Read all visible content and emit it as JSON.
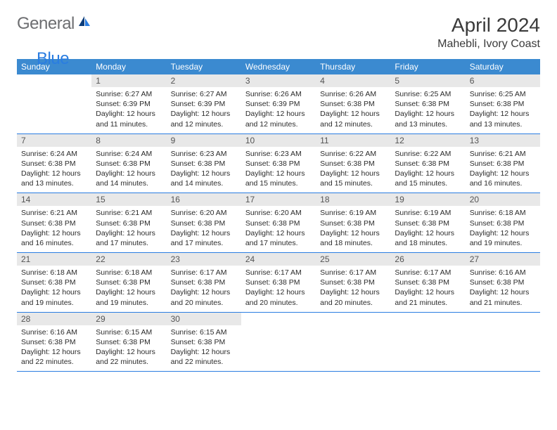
{
  "logo": {
    "general": "General",
    "blue": "Blue"
  },
  "title": "April 2024",
  "location": "Mahebli, Ivory Coast",
  "colors": {
    "header_bg": "#3b8ad0",
    "header_fg": "#ffffff",
    "daynum_bg": "#e8e8e8",
    "daynum_fg": "#555555",
    "border": "#2a7de1",
    "text": "#2b2b2b",
    "logo_gray": "#6d6e71",
    "logo_blue": "#2a7de1"
  },
  "dayNames": [
    "Sunday",
    "Monday",
    "Tuesday",
    "Wednesday",
    "Thursday",
    "Friday",
    "Saturday"
  ],
  "weeks": [
    [
      {
        "n": "",
        "sunrise": "",
        "sunset": "",
        "daylight": ""
      },
      {
        "n": "1",
        "sunrise": "Sunrise: 6:27 AM",
        "sunset": "Sunset: 6:39 PM",
        "daylight": "Daylight: 12 hours and 11 minutes."
      },
      {
        "n": "2",
        "sunrise": "Sunrise: 6:27 AM",
        "sunset": "Sunset: 6:39 PM",
        "daylight": "Daylight: 12 hours and 12 minutes."
      },
      {
        "n": "3",
        "sunrise": "Sunrise: 6:26 AM",
        "sunset": "Sunset: 6:39 PM",
        "daylight": "Daylight: 12 hours and 12 minutes."
      },
      {
        "n": "4",
        "sunrise": "Sunrise: 6:26 AM",
        "sunset": "Sunset: 6:38 PM",
        "daylight": "Daylight: 12 hours and 12 minutes."
      },
      {
        "n": "5",
        "sunrise": "Sunrise: 6:25 AM",
        "sunset": "Sunset: 6:38 PM",
        "daylight": "Daylight: 12 hours and 13 minutes."
      },
      {
        "n": "6",
        "sunrise": "Sunrise: 6:25 AM",
        "sunset": "Sunset: 6:38 PM",
        "daylight": "Daylight: 12 hours and 13 minutes."
      }
    ],
    [
      {
        "n": "7",
        "sunrise": "Sunrise: 6:24 AM",
        "sunset": "Sunset: 6:38 PM",
        "daylight": "Daylight: 12 hours and 13 minutes."
      },
      {
        "n": "8",
        "sunrise": "Sunrise: 6:24 AM",
        "sunset": "Sunset: 6:38 PM",
        "daylight": "Daylight: 12 hours and 14 minutes."
      },
      {
        "n": "9",
        "sunrise": "Sunrise: 6:23 AM",
        "sunset": "Sunset: 6:38 PM",
        "daylight": "Daylight: 12 hours and 14 minutes."
      },
      {
        "n": "10",
        "sunrise": "Sunrise: 6:23 AM",
        "sunset": "Sunset: 6:38 PM",
        "daylight": "Daylight: 12 hours and 15 minutes."
      },
      {
        "n": "11",
        "sunrise": "Sunrise: 6:22 AM",
        "sunset": "Sunset: 6:38 PM",
        "daylight": "Daylight: 12 hours and 15 minutes."
      },
      {
        "n": "12",
        "sunrise": "Sunrise: 6:22 AM",
        "sunset": "Sunset: 6:38 PM",
        "daylight": "Daylight: 12 hours and 15 minutes."
      },
      {
        "n": "13",
        "sunrise": "Sunrise: 6:21 AM",
        "sunset": "Sunset: 6:38 PM",
        "daylight": "Daylight: 12 hours and 16 minutes."
      }
    ],
    [
      {
        "n": "14",
        "sunrise": "Sunrise: 6:21 AM",
        "sunset": "Sunset: 6:38 PM",
        "daylight": "Daylight: 12 hours and 16 minutes."
      },
      {
        "n": "15",
        "sunrise": "Sunrise: 6:21 AM",
        "sunset": "Sunset: 6:38 PM",
        "daylight": "Daylight: 12 hours and 17 minutes."
      },
      {
        "n": "16",
        "sunrise": "Sunrise: 6:20 AM",
        "sunset": "Sunset: 6:38 PM",
        "daylight": "Daylight: 12 hours and 17 minutes."
      },
      {
        "n": "17",
        "sunrise": "Sunrise: 6:20 AM",
        "sunset": "Sunset: 6:38 PM",
        "daylight": "Daylight: 12 hours and 17 minutes."
      },
      {
        "n": "18",
        "sunrise": "Sunrise: 6:19 AM",
        "sunset": "Sunset: 6:38 PM",
        "daylight": "Daylight: 12 hours and 18 minutes."
      },
      {
        "n": "19",
        "sunrise": "Sunrise: 6:19 AM",
        "sunset": "Sunset: 6:38 PM",
        "daylight": "Daylight: 12 hours and 18 minutes."
      },
      {
        "n": "20",
        "sunrise": "Sunrise: 6:18 AM",
        "sunset": "Sunset: 6:38 PM",
        "daylight": "Daylight: 12 hours and 19 minutes."
      }
    ],
    [
      {
        "n": "21",
        "sunrise": "Sunrise: 6:18 AM",
        "sunset": "Sunset: 6:38 PM",
        "daylight": "Daylight: 12 hours and 19 minutes."
      },
      {
        "n": "22",
        "sunrise": "Sunrise: 6:18 AM",
        "sunset": "Sunset: 6:38 PM",
        "daylight": "Daylight: 12 hours and 19 minutes."
      },
      {
        "n": "23",
        "sunrise": "Sunrise: 6:17 AM",
        "sunset": "Sunset: 6:38 PM",
        "daylight": "Daylight: 12 hours and 20 minutes."
      },
      {
        "n": "24",
        "sunrise": "Sunrise: 6:17 AM",
        "sunset": "Sunset: 6:38 PM",
        "daylight": "Daylight: 12 hours and 20 minutes."
      },
      {
        "n": "25",
        "sunrise": "Sunrise: 6:17 AM",
        "sunset": "Sunset: 6:38 PM",
        "daylight": "Daylight: 12 hours and 20 minutes."
      },
      {
        "n": "26",
        "sunrise": "Sunrise: 6:17 AM",
        "sunset": "Sunset: 6:38 PM",
        "daylight": "Daylight: 12 hours and 21 minutes."
      },
      {
        "n": "27",
        "sunrise": "Sunrise: 6:16 AM",
        "sunset": "Sunset: 6:38 PM",
        "daylight": "Daylight: 12 hours and 21 minutes."
      }
    ],
    [
      {
        "n": "28",
        "sunrise": "Sunrise: 6:16 AM",
        "sunset": "Sunset: 6:38 PM",
        "daylight": "Daylight: 12 hours and 22 minutes."
      },
      {
        "n": "29",
        "sunrise": "Sunrise: 6:15 AM",
        "sunset": "Sunset: 6:38 PM",
        "daylight": "Daylight: 12 hours and 22 minutes."
      },
      {
        "n": "30",
        "sunrise": "Sunrise: 6:15 AM",
        "sunset": "Sunset: 6:38 PM",
        "daylight": "Daylight: 12 hours and 22 minutes."
      },
      {
        "n": "",
        "sunrise": "",
        "sunset": "",
        "daylight": ""
      },
      {
        "n": "",
        "sunrise": "",
        "sunset": "",
        "daylight": ""
      },
      {
        "n": "",
        "sunrise": "",
        "sunset": "",
        "daylight": ""
      },
      {
        "n": "",
        "sunrise": "",
        "sunset": "",
        "daylight": ""
      }
    ]
  ]
}
